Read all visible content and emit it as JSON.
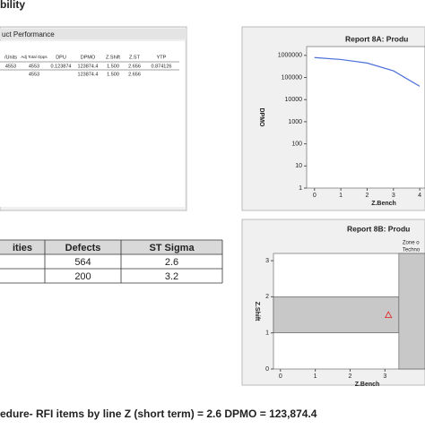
{
  "heading": "bility",
  "performance": {
    "title": "uct Performance",
    "columns": [
      "/Units",
      "Adj Total Opps",
      "DPU",
      "DPMO",
      "Z.Shift",
      "Z.ST",
      "YTP"
    ],
    "rows": [
      [
        "4553",
        "4553",
        "0.123874",
        "123874.4",
        "1.500",
        "2.656",
        "0.874126"
      ],
      [
        null,
        "4553",
        null,
        "123874.4",
        "1.500",
        "2.656",
        null
      ]
    ]
  },
  "summary": {
    "columns": [
      "ities",
      "Defects",
      "ST Sigma"
    ],
    "rows": [
      [
        null,
        "564",
        "2.6"
      ],
      [
        null,
        "200",
        "3.2"
      ]
    ]
  },
  "caption": "edure- RFI items by line Z (short term) = 2.6 DPMO = 123,874.4",
  "chart_data": [
    {
      "type": "line",
      "title": "Report 8A: Produ",
      "xlabel": "Z.Bench",
      "ylabel": "DPMO",
      "x": [
        0,
        1,
        2,
        3,
        4
      ],
      "series": [
        {
          "name": "DPMO",
          "color": "#4a6fd8",
          "values": [
            800000,
            650000,
            450000,
            200000,
            40000
          ]
        }
      ],
      "xlim": [
        -0.3,
        4.2
      ],
      "xticks": [
        0,
        1,
        2,
        3,
        4
      ],
      "ylim": [
        1,
        2500000
      ],
      "yticks": [
        1,
        10,
        100,
        1000,
        10000,
        100000,
        1000000
      ],
      "log_y": true
    },
    {
      "type": "scatter",
      "title": "Report 8B: Produ",
      "xlabel": "Z.Bench",
      "ylabel": "Z.Shift",
      "x": [
        3.1
      ],
      "series": [
        {
          "name": "Process",
          "color": "#e03030",
          "values": [
            1.5
          ]
        }
      ],
      "xlim": [
        -0.2,
        4.15
      ],
      "xticks": [
        0,
        1,
        2,
        3
      ],
      "ylim": [
        0,
        3.2
      ],
      "yticks": [
        0,
        1,
        2,
        3
      ],
      "bands": [
        {
          "y": [
            1,
            2
          ],
          "color": "#c8c8c8"
        }
      ],
      "zone": {
        "x": 3.4,
        "color": "#c8c8c8",
        "labels": [
          "Zone o",
          "Techno"
        ]
      }
    }
  ]
}
